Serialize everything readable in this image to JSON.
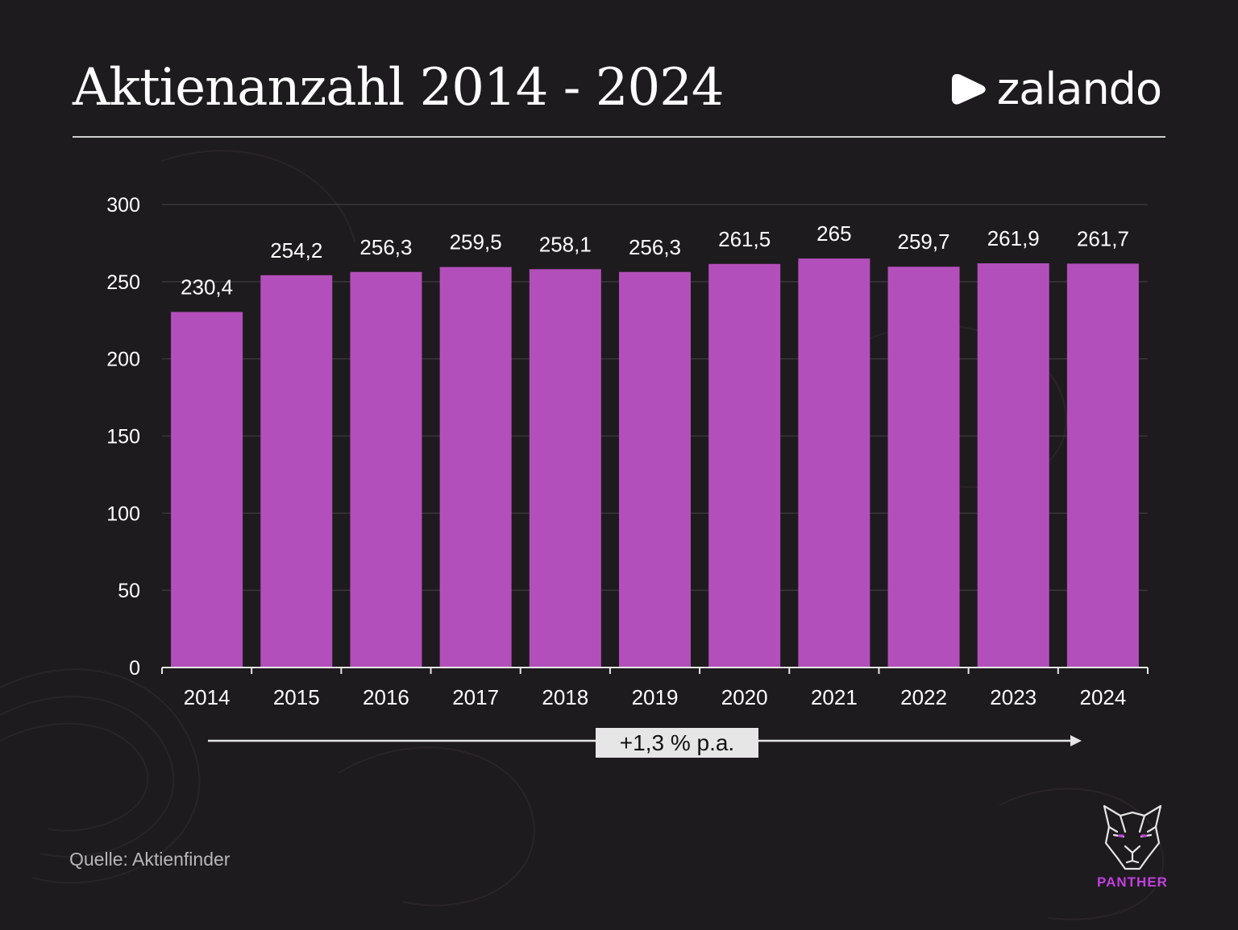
{
  "title": "Aktienanzahl 2014 - 2024",
  "brand": {
    "name": "zalando",
    "icon": "zalando-play-logo-icon"
  },
  "source": "Quelle: Aktienfinder",
  "watermark": {
    "label": "PANTHER",
    "icon": "panther-head-icon"
  },
  "colors": {
    "background": "#1e1b1e",
    "bar": "#b34fbb",
    "axis": "#e6e6e6",
    "grid": "#3a373a",
    "accent": "#c23fe0"
  },
  "chart_data": {
    "type": "bar",
    "categories": [
      "2014",
      "2015",
      "2016",
      "2017",
      "2018",
      "2019",
      "2020",
      "2021",
      "2022",
      "2023",
      "2024"
    ],
    "values": [
      230.4,
      254.2,
      256.3,
      259.5,
      258.1,
      256.3,
      261.5,
      265,
      259.7,
      261.9,
      261.7
    ],
    "value_labels": [
      "230,4",
      "254,2",
      "256,3",
      "259,5",
      "258,1",
      "256,3",
      "261,5",
      "265",
      "259,7",
      "261,9",
      "261,7"
    ],
    "y_ticks": [
      0,
      50,
      100,
      150,
      200,
      250,
      300
    ],
    "ylim": [
      0,
      300
    ],
    "grid": true,
    "legend": "none",
    "annotation": "+1,3 % p.a."
  }
}
